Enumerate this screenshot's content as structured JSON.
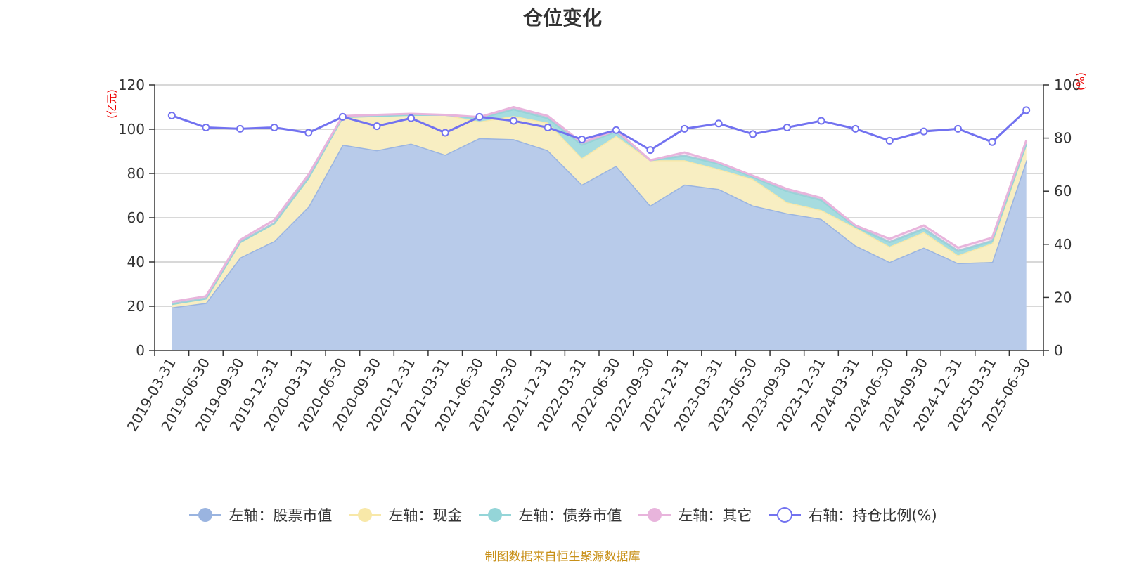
{
  "title": "仓位变化",
  "source": "制图数据来自恒生聚源数据库",
  "colors": {
    "stock": "#9ab4e0",
    "stock_fill": "#b8cbea",
    "cash": "#f8e8a8",
    "cash_fill": "#f8eec2",
    "bond": "#94d5d8",
    "bond_fill": "#a6dcdf",
    "other": "#e8b4dc",
    "ratio": "#7272f0",
    "grid": "#cccccc",
    "axis": "#333333",
    "unit": "#ee0000"
  },
  "chart_data": {
    "type": "area",
    "title": "仓位变化",
    "categories": [
      "2019-03-31",
      "2019-06-30",
      "2019-09-30",
      "2019-12-31",
      "2020-03-31",
      "2020-06-30",
      "2020-09-30",
      "2020-12-31",
      "2021-03-31",
      "2021-06-30",
      "2021-09-30",
      "2021-12-31",
      "2022-03-31",
      "2022-06-30",
      "2022-09-30",
      "2022-12-31",
      "2023-03-31",
      "2023-06-30",
      "2023-09-30",
      "2023-12-31",
      "2024-03-31",
      "2024-06-30",
      "2024-09-30",
      "2024-12-31",
      "2025-03-31",
      "2025-06-30"
    ],
    "y_left": {
      "unit": "(亿元)",
      "ylim": [
        0,
        120
      ],
      "ticks": [
        "0",
        "20",
        "40",
        "60",
        "80",
        "100",
        "120"
      ]
    },
    "y_right": {
      "unit": "(%)",
      "ylim": [
        0,
        100
      ],
      "ticks": [
        "0",
        "20",
        "40",
        "60",
        "80",
        "100"
      ]
    },
    "legend_position": "bottom",
    "grid": true,
    "stacked_series": [
      {
        "name": "左轴：股票市值",
        "color": "#9ab4e0",
        "values": [
          19.5,
          21.5,
          42.0,
          49.5,
          65.0,
          93.0,
          90.5,
          93.5,
          88.5,
          96.0,
          95.5,
          90.5,
          75.0,
          83.5,
          65.5,
          75.0,
          73.0,
          65.5,
          62.0,
          59.5,
          47.5,
          40.0,
          46.5,
          39.5,
          40.0,
          86.0
        ]
      },
      {
        "name": "左轴：现金",
        "color": "#f8e8a8",
        "values": [
          1.5,
          2.0,
          7.0,
          8.0,
          13.0,
          12.5,
          15.5,
          13.0,
          18.0,
          7.5,
          10.5,
          12.5,
          12.0,
          13.5,
          20.5,
          11.0,
          9.0,
          12.0,
          5.0,
          4.0,
          8.0,
          7.0,
          7.0,
          3.5,
          8.5,
          7.5
        ]
      },
      {
        "name": "左轴：债券市值",
        "color": "#94d5d8",
        "values": [
          0,
          0,
          0,
          0,
          0,
          0,
          0,
          0,
          0,
          1.5,
          3.0,
          2.0,
          6.0,
          2.0,
          0,
          2.0,
          2.5,
          1.0,
          5.0,
          4.5,
          0.5,
          2.0,
          1.5,
          2.0,
          1.0,
          0
        ]
      },
      {
        "name": "左轴：其它",
        "color": "#e8b4dc",
        "values": [
          1.0,
          1.0,
          1.0,
          1.5,
          1.5,
          0.5,
          0.5,
          0.5,
          0,
          0.5,
          1.0,
          1.0,
          1.0,
          0.5,
          0,
          1.5,
          0.5,
          0.5,
          1.0,
          1.0,
          0.5,
          1.5,
          1.5,
          1.5,
          1.5,
          1.5
        ]
      }
    ],
    "line_series": [
      {
        "name": "右轴：持仓比例(%)",
        "color": "#7272f0",
        "axis": "right",
        "values": [
          88.5,
          84.0,
          83.5,
          84.0,
          82.0,
          88.0,
          84.5,
          87.5,
          82.0,
          88.0,
          86.5,
          84.0,
          79.5,
          83.0,
          75.5,
          83.5,
          85.5,
          81.5,
          84.0,
          86.5,
          83.5,
          79.0,
          82.5,
          83.5,
          78.5,
          90.5
        ]
      }
    ]
  }
}
